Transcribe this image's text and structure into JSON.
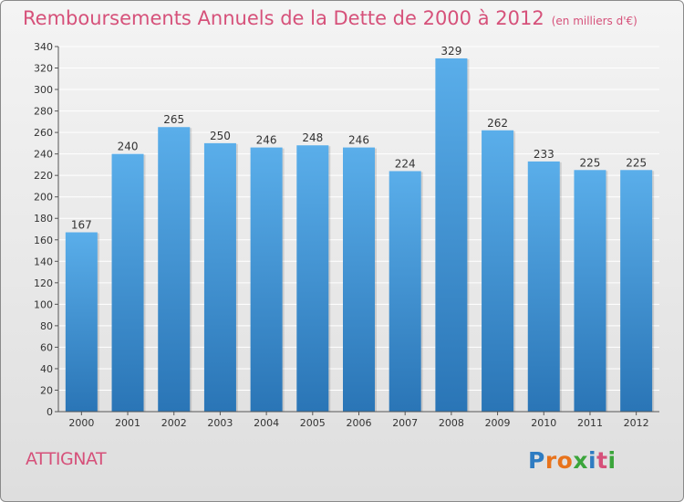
{
  "header": {
    "title": "Remboursements Annuels de la Dette de 2000 à 2012",
    "subtitle": "(en milliers d'€)"
  },
  "footer": {
    "city": "ATTIGNAT",
    "logo": [
      "P",
      "r",
      "o",
      "x",
      "i",
      "t",
      "i"
    ],
    "logo_colors": [
      "#2e7cc2",
      "#e8731c",
      "#e8731c",
      "#3ba53b",
      "#2e7cc2",
      "#d6517a",
      "#3ba53b"
    ]
  },
  "chart_data": {
    "type": "bar",
    "title": "Remboursements Annuels de la Dette de 2000 à 2012",
    "subtitle": "(en milliers d'€)",
    "categories": [
      "2000",
      "2001",
      "2002",
      "2003",
      "2004",
      "2005",
      "2006",
      "2007",
      "2008",
      "2009",
      "2010",
      "2011",
      "2012"
    ],
    "values": [
      167,
      240,
      265,
      250,
      246,
      248,
      246,
      224,
      329,
      262,
      233,
      225,
      225
    ],
    "ylim": [
      0,
      340
    ],
    "yticks": [
      0,
      20,
      40,
      60,
      80,
      100,
      120,
      140,
      160,
      180,
      200,
      220,
      240,
      260,
      280,
      300,
      320,
      340
    ],
    "grid": true,
    "colors": {
      "bar_top": "#5aaeea",
      "bar_bottom": "#2a75b6",
      "grid": "#ffffff",
      "axis": "#555555"
    }
  }
}
